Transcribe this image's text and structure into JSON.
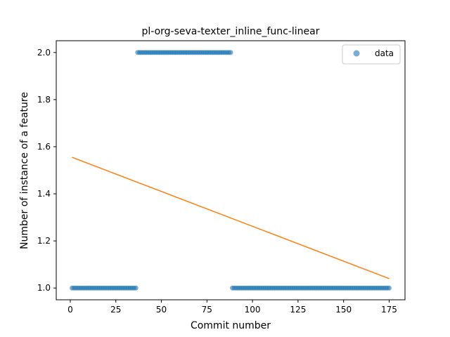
{
  "chart_data": {
    "type": "scatter",
    "title": "pl-org-seva-texter_inline_func-linear",
    "xlabel": "Commit number",
    "ylabel": "Number of instance of a feature",
    "xlim": [
      -7.7,
      183.7
    ],
    "ylim": [
      0.95,
      2.05
    ],
    "xticks": [
      0,
      25,
      50,
      75,
      100,
      125,
      150,
      175
    ],
    "yticks": [
      1.0,
      1.2,
      1.4,
      1.6,
      1.8,
      2.0
    ],
    "ytick_labels": [
      "1.0",
      "1.2",
      "1.4",
      "1.6",
      "1.8",
      "2.0"
    ],
    "grid": false,
    "legend_position": "top-right",
    "colors": {
      "data": "#1f77b4",
      "fit": "#ff7f0e"
    },
    "series": [
      {
        "name": "data",
        "kind": "scatter",
        "segments": [
          {
            "x_start": 1,
            "x_end": 36,
            "y": 1.0
          },
          {
            "x_start": 37,
            "x_end": 88,
            "y": 2.0
          },
          {
            "x_start": 89,
            "x_end": 175,
            "y": 1.0
          }
        ]
      },
      {
        "kind": "line",
        "x": [
          1,
          175
        ],
        "y": [
          1.555,
          1.04
        ]
      }
    ]
  }
}
